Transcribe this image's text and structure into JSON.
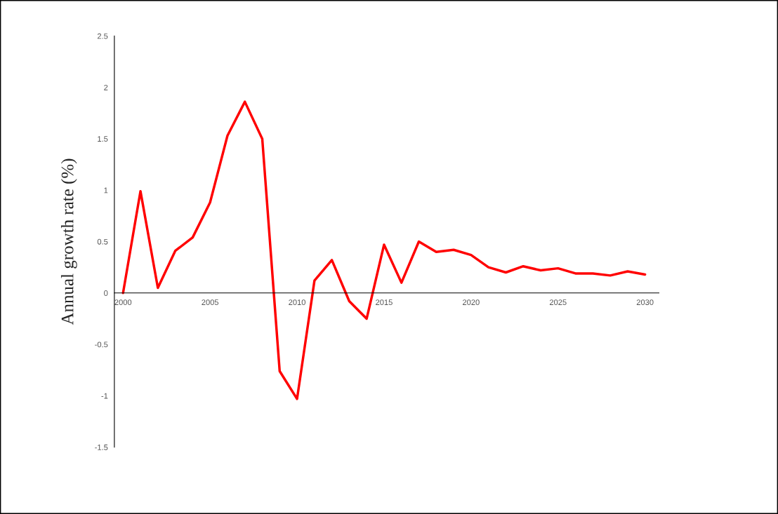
{
  "chart_data": {
    "type": "line",
    "ylabel": "Annual growth rate (%)",
    "x": [
      2000,
      2001,
      2002,
      2003,
      2004,
      2005,
      2006,
      2007,
      2008,
      2009,
      2010,
      2011,
      2012,
      2013,
      2014,
      2015,
      2016,
      2017,
      2018,
      2019,
      2020,
      2021,
      2022,
      2023,
      2024,
      2025,
      2026,
      2027,
      2028,
      2029,
      2030
    ],
    "series": [
      {
        "color": "#ff0000",
        "values": [
          0,
          0.99,
          0.05,
          0.41,
          0.54,
          0.88,
          1.53,
          1.86,
          1.5,
          -0.76,
          -1.03,
          0.12,
          0.32,
          -0.08,
          -0.25,
          0.47,
          0.1,
          0.5,
          0.4,
          0.42,
          0.37,
          0.25,
          0.2,
          0.26,
          0.22,
          0.24,
          0.19,
          0.19,
          0.17,
          0.21,
          0.18
        ]
      }
    ],
    "xlim": [
      1999.5,
      2030.8
    ],
    "xticks": [
      2000,
      2005,
      2010,
      2015,
      2020,
      2025,
      2030
    ],
    "ylim": [
      -1.5,
      2.5
    ],
    "yticks": [
      -1.5,
      -1,
      -0.5,
      0,
      0.5,
      1,
      1.5,
      2,
      2.5
    ],
    "grid": false,
    "legend": false,
    "marker": "none",
    "line_style": "solid"
  }
}
